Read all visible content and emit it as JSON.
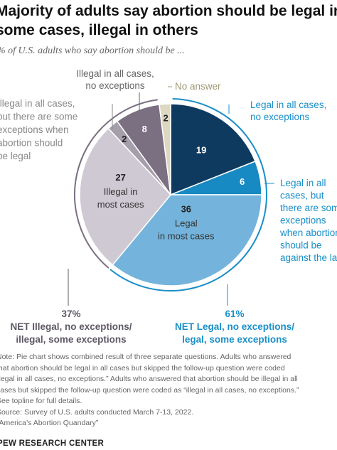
{
  "chart_data": {
    "type": "pie",
    "title": "Majority of adults say abortion should be legal in some cases, illegal in others",
    "subtitle": "% of U.S. adults who say abortion should be ...",
    "slices": [
      {
        "key": "legal_all",
        "value": 19,
        "label": "19",
        "color": "#0f3a5f",
        "annotation": [
          "Legal in all cases,",
          "no exceptions"
        ],
        "inner_text": []
      },
      {
        "key": "legal_all_some_exceptions",
        "value": 6,
        "label": "6",
        "color": "#1789c3",
        "annotation": [
          "Legal in all",
          "cases, but",
          "there are some",
          "exceptions",
          "when abortion",
          "should be",
          "against the law"
        ],
        "inner_text": []
      },
      {
        "key": "legal_most",
        "value": 36,
        "label": "36",
        "color": "#74b4dc",
        "annotation": [],
        "inner_text": [
          "Legal",
          "in most cases"
        ]
      },
      {
        "key": "illegal_most",
        "value": 27,
        "label": "27",
        "color": "#cfc9d4",
        "annotation": [],
        "inner_text": [
          "Illegal in",
          "most cases"
        ]
      },
      {
        "key": "illegal_all_some_exceptions",
        "value": 2,
        "label": "2",
        "color": "#a59fab",
        "annotation": [
          "Illegal in all cases,",
          "but there are some",
          "exceptions when",
          "abortion should",
          "be legal"
        ],
        "inner_text": []
      },
      {
        "key": "illegal_all",
        "value": 8,
        "label": "8",
        "color": "#7b6f82",
        "annotation": [
          "Illegal in all cases,",
          "no exceptions"
        ],
        "inner_text": []
      },
      {
        "key": "no_answer",
        "value": 2,
        "label": "2",
        "color": "#dcd8c2",
        "annotation": [
          "No answer"
        ],
        "inner_text": []
      }
    ],
    "nets": [
      {
        "key": "net_illegal",
        "value": "37%",
        "lines": [
          "NET Illegal, no exceptions/",
          "illegal, some exceptions"
        ],
        "color": "#5f5866"
      },
      {
        "key": "net_legal",
        "value": "61%",
        "lines": [
          "NET Legal, no exceptions/",
          "legal, some exceptions"
        ],
        "color": "#1a8fc8"
      }
    ]
  },
  "note": [
    "Note: Pie chart shows combined result of three separate questions. Adults who answered",
    "that abortion should be legal in all cases but skipped the follow-up question were coded",
    "“legal in all cases, no exceptions.” Adults who answered that abortion should be illegal in all",
    "cases but skipped the follow-up question were coded as “illegal in all cases, no exceptions.”",
    "See topline for full details.",
    "Source: Survey of U.S. adults conducted March 7-13, 2022.",
    "“America’s Abortion Quandary”"
  ],
  "brand": "PEW RESEARCH CENTER"
}
